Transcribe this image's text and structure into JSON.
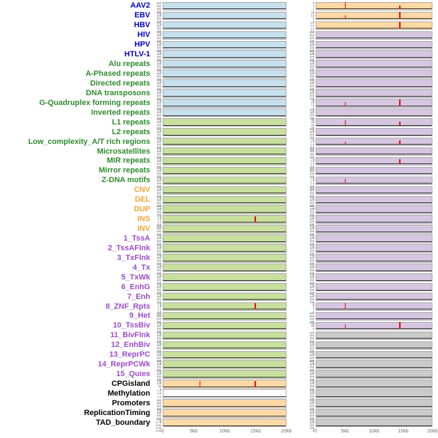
{
  "chart_data": {
    "type": "line",
    "title": "",
    "description_visible": false,
    "columns": 2,
    "x_axis": {
      "ticks": [
        "0",
        "5kb",
        "10kb",
        "15kb",
        "20kb"
      ],
      "min_kb": 0,
      "max_kb": 20
    },
    "colors": {
      "label_groups": {
        "virus": "#0000cc",
        "repeat": "#2e8b2e",
        "sv": "#efa63a",
        "chromatin": "#9b4dca",
        "other": "#000000"
      },
      "panels": {
        "blue": "#c6e0ee",
        "green": "#c8df9e",
        "orange": "#fed9a6",
        "purple": "#d6c6e1",
        "gray": "#cbcbcb",
        "white": "#ffffff"
      },
      "spike": "#e60000",
      "baseline": "#333333"
    },
    "ytick_sets": {
      "c400": [
        "400",
        "300",
        "200",
        "100",
        "0"
      ],
      "r2": [
        "2.0",
        "1.5",
        "1.0",
        "0.5",
        "0.0"
      ],
      "r3": [
        "3.0",
        "2.0",
        "1.0",
        "0.0"
      ],
      "r6": [
        "6",
        "4",
        "2",
        "0"
      ],
      "r15": [
        "15",
        "10",
        "5",
        "0"
      ],
      "r20": [
        "20",
        "15",
        "10",
        "5",
        "0"
      ],
      "r80": [
        "80",
        "60",
        "40",
        "20",
        "0"
      ],
      "r100": [
        "100",
        "50",
        "0"
      ],
      "r150": [
        "150",
        "100",
        "50",
        "0"
      ],
      "r1": [
        "1.0",
        "0.5",
        "0.0"
      ],
      "frac": [
        "1.00",
        "0.75",
        "0.50",
        "0.25",
        "0.00"
      ]
    },
    "rows": [
      {
        "label": "AAV2",
        "group": "virus",
        "left": {
          "bg": "blue",
          "yticks": "c400",
          "spikes": []
        },
        "right": {
          "bg": "orange",
          "yticks": "r6",
          "spikes": [
            {
              "x_kb": 5,
              "h": 0.95
            },
            {
              "x_kb": 14.5,
              "h": 0.45
            }
          ]
        }
      },
      {
        "label": "EBV",
        "group": "virus",
        "left": {
          "bg": "blue",
          "yticks": "c400",
          "spikes": []
        },
        "right": {
          "bg": "orange",
          "yticks": "r15",
          "spikes": [
            {
              "x_kb": 5,
              "h": 0.5
            },
            {
              "x_kb": 14.5,
              "h": 0.95
            }
          ]
        }
      },
      {
        "label": "HBV",
        "group": "virus",
        "left": {
          "bg": "blue",
          "yticks": "c400",
          "spikes": []
        },
        "right": {
          "bg": "orange",
          "yticks": "r3",
          "spikes": [
            {
              "x_kb": 14.5,
              "h": 0.95
            }
          ]
        }
      },
      {
        "label": "HIV",
        "group": "virus",
        "left": {
          "bg": "blue",
          "yticks": "c400",
          "spikes": []
        },
        "right": {
          "bg": "purple",
          "yticks": "c400",
          "spikes": []
        }
      },
      {
        "label": "HPV",
        "group": "virus",
        "left": {
          "bg": "blue",
          "yticks": "c400",
          "spikes": []
        },
        "right": {
          "bg": "purple",
          "yticks": "c400",
          "spikes": []
        }
      },
      {
        "label": "HTLV-1",
        "group": "virus",
        "left": {
          "bg": "blue",
          "yticks": "c400",
          "spikes": []
        },
        "right": {
          "bg": "purple",
          "yticks": "c400",
          "spikes": []
        }
      },
      {
        "label": "Alu repeats",
        "group": "repeat",
        "left": {
          "bg": "blue",
          "yticks": "c400",
          "spikes": []
        },
        "right": {
          "bg": "purple",
          "yticks": "c400",
          "spikes": []
        }
      },
      {
        "label": "A-Phased repeats",
        "group": "repeat",
        "left": {
          "bg": "blue",
          "yticks": "c400",
          "spikes": []
        },
        "right": {
          "bg": "purple",
          "yticks": "c400",
          "spikes": []
        }
      },
      {
        "label": "Directed repeats",
        "group": "repeat",
        "left": {
          "bg": "blue",
          "yticks": "c400",
          "spikes": []
        },
        "right": {
          "bg": "purple",
          "yticks": "c400",
          "spikes": []
        }
      },
      {
        "label": "DNA transposons",
        "group": "repeat",
        "left": {
          "bg": "blue",
          "yticks": "c400",
          "spikes": []
        },
        "right": {
          "bg": "purple",
          "yticks": "c400",
          "spikes": []
        }
      },
      {
        "label": "G-Quadruplex forming repeats",
        "group": "repeat",
        "left": {
          "bg": "blue",
          "yticks": "c400",
          "spikes": []
        },
        "right": {
          "bg": "purple",
          "yticks": "r20",
          "spikes": [
            {
              "x_kb": 5,
              "h": 0.5
            },
            {
              "x_kb": 14.5,
              "h": 0.95
            }
          ]
        }
      },
      {
        "label": "Inverted repeats",
        "group": "repeat",
        "left": {
          "bg": "blue",
          "yticks": "c400",
          "spikes": []
        },
        "right": {
          "bg": "purple",
          "yticks": "c400",
          "spikes": []
        }
      },
      {
        "label": "L1 repeats",
        "group": "repeat",
        "left": {
          "bg": "green",
          "yticks": "c400",
          "spikes": []
        },
        "right": {
          "bg": "purple",
          "yticks": "r80",
          "spikes": [
            {
              "x_kb": 5,
              "h": 0.7
            },
            {
              "x_kb": 14.5,
              "h": 0.5
            }
          ]
        }
      },
      {
        "label": "L2 repeats",
        "group": "repeat",
        "left": {
          "bg": "green",
          "yticks": "c400",
          "spikes": []
        },
        "right": {
          "bg": "purple",
          "yticks": "c400",
          "spikes": []
        }
      },
      {
        "label": "Low_complexity_A/T rich regions",
        "group": "repeat",
        "left": {
          "bg": "green",
          "yticks": "c400",
          "spikes": []
        },
        "right": {
          "bg": "purple",
          "yticks": "r2",
          "spikes": [
            {
              "x_kb": 5,
              "h": 0.4
            },
            {
              "x_kb": 14.5,
              "h": 0.6
            }
          ]
        }
      },
      {
        "label": "Microsatellites",
        "group": "repeat",
        "left": {
          "bg": "green",
          "yticks": "c400",
          "spikes": []
        },
        "right": {
          "bg": "purple",
          "yticks": "c400",
          "spikes": []
        }
      },
      {
        "label": "MIR repeats",
        "group": "repeat",
        "left": {
          "bg": "green",
          "yticks": "c400",
          "spikes": []
        },
        "right": {
          "bg": "purple",
          "yticks": "r2",
          "spikes": [
            {
              "x_kb": 14.5,
              "h": 0.65
            }
          ]
        }
      },
      {
        "label": "Mirror repeats",
        "group": "repeat",
        "left": {
          "bg": "green",
          "yticks": "c400",
          "spikes": []
        },
        "right": {
          "bg": "purple",
          "yticks": "c400",
          "spikes": []
        }
      },
      {
        "label": "Z-DNA motifs",
        "group": "repeat",
        "left": {
          "bg": "green",
          "yticks": "c400",
          "spikes": []
        },
        "right": {
          "bg": "purple",
          "yticks": "r2",
          "spikes": [
            {
              "x_kb": 5,
              "h": 0.7
            }
          ]
        }
      },
      {
        "label": "CNV",
        "group": "sv",
        "left": {
          "bg": "green",
          "yticks": "c400",
          "spikes": []
        },
        "right": {
          "bg": "purple",
          "yticks": "c400",
          "spikes": []
        }
      },
      {
        "label": "DEL",
        "group": "sv",
        "left": {
          "bg": "green",
          "yticks": "c400",
          "spikes": []
        },
        "right": {
          "bg": "purple",
          "yticks": "c400",
          "spikes": []
        }
      },
      {
        "label": "DUP",
        "group": "sv",
        "left": {
          "bg": "green",
          "yticks": "c400",
          "spikes": []
        },
        "right": {
          "bg": "purple",
          "yticks": "c400",
          "spikes": []
        }
      },
      {
        "label": "INS",
        "group": "sv",
        "left": {
          "bg": "green",
          "yticks": "r2",
          "spikes": [
            {
              "x_kb": 15,
              "h": 0.85
            }
          ]
        },
        "right": {
          "bg": "purple",
          "yticks": "c400",
          "spikes": []
        }
      },
      {
        "label": "INV",
        "group": "sv",
        "left": {
          "bg": "green",
          "yticks": "c400",
          "spikes": []
        },
        "right": {
          "bg": "purple",
          "yticks": "c400",
          "spikes": []
        }
      },
      {
        "label": "1_TssA",
        "group": "chromatin",
        "left": {
          "bg": "green",
          "yticks": "c400",
          "spikes": []
        },
        "right": {
          "bg": "purple",
          "yticks": "c400",
          "spikes": []
        }
      },
      {
        "label": "2_TssAFlnk",
        "group": "chromatin",
        "left": {
          "bg": "green",
          "yticks": "c400",
          "spikes": []
        },
        "right": {
          "bg": "purple",
          "yticks": "c400",
          "spikes": []
        }
      },
      {
        "label": "3_TxFlnk",
        "group": "chromatin",
        "left": {
          "bg": "green",
          "yticks": "c400",
          "spikes": []
        },
        "right": {
          "bg": "purple",
          "yticks": "c400",
          "spikes": []
        }
      },
      {
        "label": "4_Tx",
        "group": "chromatin",
        "left": {
          "bg": "green",
          "yticks": "c400",
          "spikes": []
        },
        "right": {
          "bg": "purple",
          "yticks": "c400",
          "spikes": []
        }
      },
      {
        "label": "5_TxWk",
        "group": "chromatin",
        "left": {
          "bg": "green",
          "yticks": "c400",
          "spikes": []
        },
        "right": {
          "bg": "purple",
          "yticks": "c400",
          "spikes": []
        }
      },
      {
        "label": "6_EnhG",
        "group": "chromatin",
        "left": {
          "bg": "green",
          "yticks": "c400",
          "spikes": []
        },
        "right": {
          "bg": "purple",
          "yticks": "c400",
          "spikes": []
        }
      },
      {
        "label": "7_Enh",
        "group": "chromatin",
        "left": {
          "bg": "green",
          "yticks": "c400",
          "spikes": []
        },
        "right": {
          "bg": "purple",
          "yticks": "c400",
          "spikes": []
        }
      },
      {
        "label": "8_ZNF_Rpts",
        "group": "chromatin",
        "left": {
          "bg": "green",
          "yticks": "r2",
          "spikes": [
            {
              "x_kb": 15,
              "h": 0.85
            }
          ]
        },
        "right": {
          "bg": "purple",
          "yticks": "r6",
          "spikes": [
            {
              "x_kb": 5,
              "h": 0.85
            }
          ]
        }
      },
      {
        "label": "9_Het",
        "group": "chromatin",
        "left": {
          "bg": "green",
          "yticks": "c400",
          "spikes": []
        },
        "right": {
          "bg": "purple",
          "yticks": "c400",
          "spikes": []
        }
      },
      {
        "label": "10_TssBiv",
        "group": "chromatin",
        "left": {
          "bg": "green",
          "yticks": "c400",
          "spikes": []
        },
        "right": {
          "bg": "purple",
          "yticks": "r100",
          "spikes": [
            {
              "x_kb": 5,
              "h": 0.55
            },
            {
              "x_kb": 14.5,
              "h": 0.95
            }
          ]
        }
      },
      {
        "label": "11_BivFlnk",
        "group": "chromatin",
        "left": {
          "bg": "green",
          "yticks": "c400",
          "spikes": []
        },
        "right": {
          "bg": "gray",
          "yticks": "c400",
          "spikes": []
        }
      },
      {
        "label": "12_EnhBiv",
        "group": "chromatin",
        "left": {
          "bg": "green",
          "yticks": "c400",
          "spikes": []
        },
        "right": {
          "bg": "gray",
          "yticks": "c400",
          "spikes": []
        }
      },
      {
        "label": "13_ReprPC",
        "group": "chromatin",
        "left": {
          "bg": "green",
          "yticks": "c400",
          "spikes": []
        },
        "right": {
          "bg": "gray",
          "yticks": "c400",
          "spikes": []
        }
      },
      {
        "label": "14_ReprPCWk",
        "group": "chromatin",
        "left": {
          "bg": "green",
          "yticks": "c400",
          "spikes": []
        },
        "right": {
          "bg": "gray",
          "yticks": "c400",
          "spikes": []
        }
      },
      {
        "label": "15_Quies",
        "group": "chromatin",
        "left": {
          "bg": "green",
          "yticks": "c400",
          "spikes": []
        },
        "right": {
          "bg": "gray",
          "yticks": "c400",
          "spikes": []
        }
      },
      {
        "label": "CPGisland",
        "group": "other",
        "left": {
          "bg": "orange",
          "yticks": "r150",
          "spikes": [
            {
              "x_kb": 6,
              "h": 0.85
            },
            {
              "x_kb": 15,
              "h": 0.8
            }
          ]
        },
        "right": {
          "bg": "gray",
          "yticks": "c400",
          "spikes": []
        }
      },
      {
        "label": "Methylation",
        "group": "other",
        "left": {
          "bg": "white",
          "yticks": "r1",
          "spikes": []
        },
        "right": {
          "bg": "gray",
          "yticks": "c400",
          "spikes": []
        }
      },
      {
        "label": "Promoters",
        "group": "other",
        "left": {
          "bg": "orange",
          "yticks": "c400",
          "spikes": []
        },
        "right": {
          "bg": "gray",
          "yticks": "c400",
          "spikes": []
        }
      },
      {
        "label": "ReplicationTiming",
        "group": "other",
        "left": {
          "bg": "orange",
          "yticks": "c400",
          "spikes": []
        },
        "right": {
          "bg": "gray",
          "yticks": "c400",
          "spikes": []
        }
      },
      {
        "label": "TAD_boundary",
        "group": "other",
        "left": {
          "bg": "orange",
          "yticks": "frac",
          "spikes": []
        },
        "right": {
          "bg": "gray",
          "yticks": "c400",
          "spikes": []
        }
      }
    ]
  }
}
